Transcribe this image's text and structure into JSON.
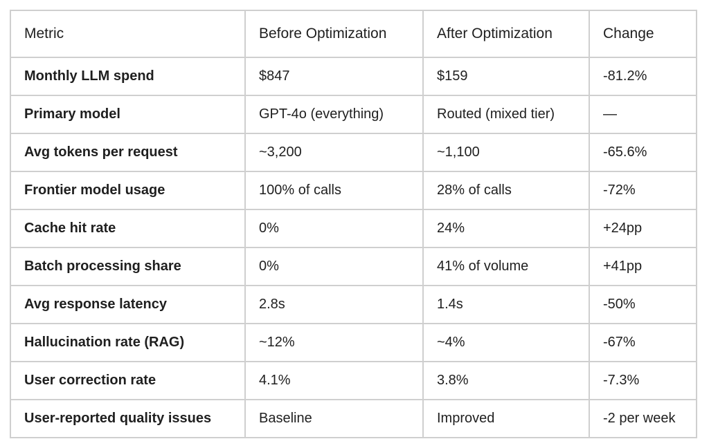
{
  "table": {
    "headers": [
      "Metric",
      "Before Optimization",
      "After Optimization",
      "Change"
    ],
    "rows": [
      [
        "Monthly LLM spend",
        "$847",
        "$159",
        "-81.2%"
      ],
      [
        "Primary model",
        "GPT-4o (everything)",
        "Routed (mixed tier)",
        "—"
      ],
      [
        "Avg tokens per request",
        "~3,200",
        "~1,100",
        "-65.6%"
      ],
      [
        "Frontier model usage",
        "100% of calls",
        "28% of calls",
        "-72%"
      ],
      [
        "Cache hit rate",
        "0%",
        "24%",
        "+24pp"
      ],
      [
        "Batch processing share",
        "0%",
        "41% of volume",
        "+41pp"
      ],
      [
        "Avg response latency",
        "2.8s",
        "1.4s",
        "-50%"
      ],
      [
        "Hallucination rate (RAG)",
        "~12%",
        "~4%",
        "-67%"
      ],
      [
        "User correction rate",
        "4.1%",
        "3.8%",
        "-7.3%"
      ],
      [
        "User-reported quality issues",
        "Baseline",
        "Improved",
        "-2 per week"
      ]
    ]
  }
}
